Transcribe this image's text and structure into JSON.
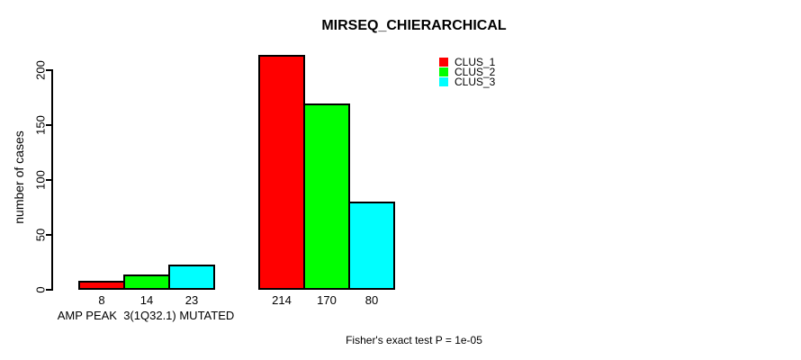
{
  "chart_data": {
    "type": "bar",
    "title": "MIRSEQ_CHIERARCHICAL",
    "ylabel": "number of cases",
    "xlabel": "",
    "yticks": [
      0,
      50,
      100,
      150,
      200
    ],
    "ylim": [
      0,
      220
    ],
    "grid": false,
    "legend_position": "top-right-inside",
    "bar_value_labels": true,
    "series": [
      {
        "name": "CLUS_1",
        "color": "#ff0000"
      },
      {
        "name": "CLUS_2",
        "color": "#00ff00"
      },
      {
        "name": "CLUS_3",
        "color": "#00ffff"
      }
    ],
    "groups": [
      {
        "label": "AMP PEAK  3(1Q32.1) MUTATED",
        "values": [
          8,
          14,
          23
        ]
      },
      {
        "label": "",
        "values": [
          214,
          170,
          80
        ]
      }
    ],
    "annotation": "Fisher's exact test P = 1e-05",
    "colors": {
      "bar_border": "#000000",
      "axis": "#000000",
      "text": "#000000",
      "background": "#ffffff"
    }
  }
}
